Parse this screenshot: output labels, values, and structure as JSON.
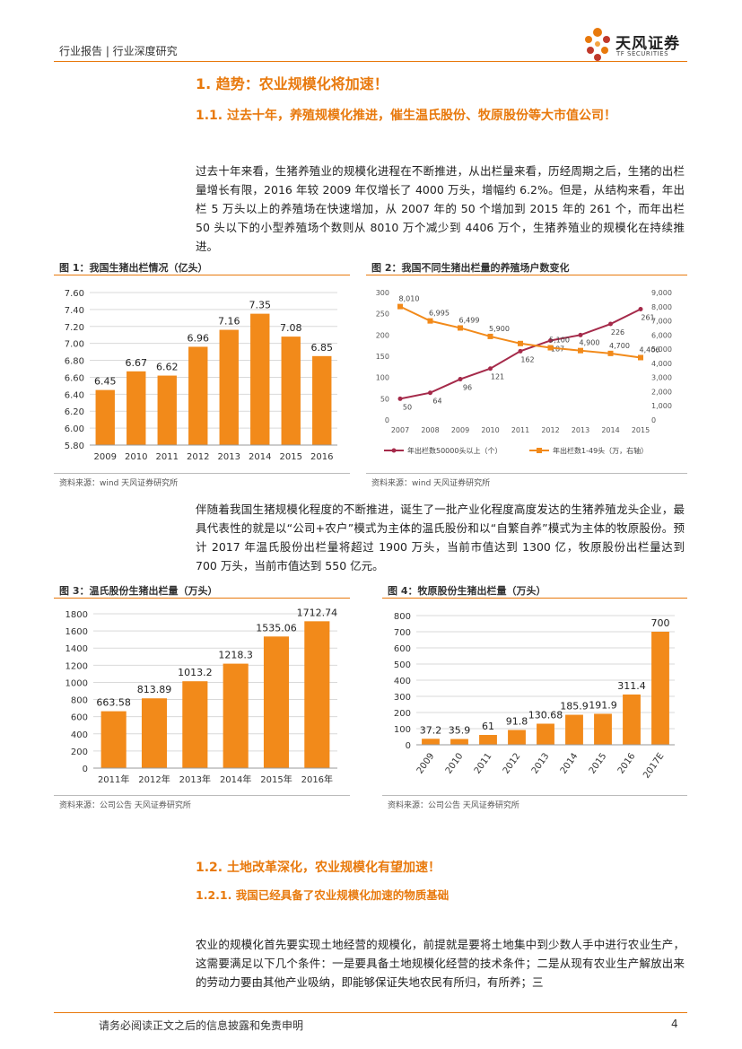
{
  "header": {
    "left": "行业报告 | 行业深度研究"
  },
  "logo": {
    "cn": "天风证券",
    "en": "TF SECURITIES"
  },
  "section1": {
    "title": "1. 趋势：农业规模化将加速！",
    "sub_title": "1.1. 过去十年，养殖规模化推进，催生温氏股份、牧原股份等大市值公司！",
    "para1": "过去十年来看，生猪养殖业的规模化进程在不断推进，从出栏量来看，历经周期之后，生猪的出栏量增长有限，2016 年较 2009 年仅增长了 4000 万头，增幅约 6.2%。但是，从结构来看，年出栏 5 万头以上的养殖场在快速增加，从 2007 年的 50 个增加到 2015 年的 261 个，而年出栏 50 头以下的小型养殖场个数则从 8010 万个减少到 4406 万个，生猪养殖业的规模化在持续推进。",
    "para2": "伴随着我国生猪规模化程度的不断推进，诞生了一批产业化程度高度发达的生猪养殖龙头企业，最具代表性的就是以“公司+农户”模式为主体的温氏股份和以“自繁自养”模式为主体的牧原股份。预计 2017 年温氏股份出栏量将超过 1900 万头，当前市值达到 1300 亿，牧原股份出栏量达到 700 万头，当前市值达到 550 亿元。"
  },
  "fig1": {
    "title": "图 1：我国生猪出栏情况（亿头）",
    "source": "资料来源：wind   天风证券研究所"
  },
  "fig2": {
    "title": "图 2：我国不同生猪出栏量的养殖场户数变化",
    "source": "资料来源：wind   天风证券研究所"
  },
  "fig3": {
    "title": "图 3：温氏股份生猪出栏量（万头）",
    "source": "资料来源：公司公告   天风证券研究所"
  },
  "fig4": {
    "title": "图 4：牧原股份生猪出栏量（万头）",
    "source": "资料来源：公司公告   天风证券研究所"
  },
  "section2": {
    "title": "1.2. 土地改革深化，农业规模化有望加速！",
    "sub_title": "1.2.1. 我国已经具备了农业规模化加速的物质基础",
    "para1": "农业的规模化首先要实现土地经营的规模化，前提就是要将土地集中到少数人手中进行农业生产，这需要满足以下几个条件：一是要具备土地规模化经营的技术条件；二是从现有农业生产解放出来的劳动力要由其他产业吸纳，即能够保证失地农民有所归，有所养；三"
  },
  "footer": {
    "disclaimer": "请务必阅读正文之后的信息披露和免责申明",
    "page": "4"
  },
  "colors": {
    "accent": "#E8790C",
    "bar": "#F28A1A",
    "line_red": "#A52A4A"
  },
  "chart_data": [
    {
      "type": "bar",
      "categories": [
        "2009",
        "2010",
        "2011",
        "2012",
        "2013",
        "2014",
        "2015",
        "2016"
      ],
      "values": [
        6.45,
        6.67,
        6.62,
        6.96,
        7.16,
        7.35,
        7.08,
        6.85
      ],
      "value_labels": [
        "6.45",
        "6.67",
        "6.62",
        "6.96",
        "7.16",
        "7.35",
        "7.08",
        "6.85"
      ],
      "y_ticks": [
        "5.80",
        "6.00",
        "6.20",
        "6.40",
        "6.60",
        "6.80",
        "7.00",
        "7.20",
        "7.40",
        "7.60"
      ],
      "ylim": [
        5.8,
        7.6
      ],
      "grid": true
    },
    {
      "type": "line",
      "categories": [
        "2007",
        "2008",
        "2009",
        "2010",
        "2011",
        "2012",
        "2013",
        "2014",
        "2015"
      ],
      "series": [
        {
          "name": "年出栏数50000头以上（个）",
          "axis": "left",
          "values": [
            50,
            64,
            96,
            121,
            162,
            187,
            200,
            226,
            261
          ],
          "labels": [
            "50",
            "64",
            "96",
            "121",
            "162",
            "187",
            "",
            "226",
            "261"
          ]
        },
        {
          "name": "年出栏数1-49头（万，右轴）",
          "axis": "right",
          "values": [
            8010,
            6995,
            6499,
            5900,
            5400,
            5100,
            4900,
            4700,
            4406
          ],
          "labels": [
            "8,010",
            "6,995",
            "6,499",
            "5,900",
            "",
            "5,100",
            "4,900",
            "4,700",
            "4,406"
          ]
        }
      ],
      "y_left_ticks": [
        "0",
        "50",
        "100",
        "150",
        "200",
        "250",
        "300"
      ],
      "y_right_ticks": [
        "0",
        "1,000",
        "2,000",
        "3,000",
        "4,000",
        "5,000",
        "6,000",
        "7,000",
        "8,000",
        "9,000"
      ],
      "ylim_left": [
        0,
        300
      ],
      "ylim_right": [
        0,
        9000
      ],
      "legend": "bottom"
    },
    {
      "type": "bar",
      "categories": [
        "2011年",
        "2012年",
        "2013年",
        "2014年",
        "2015年",
        "2016年"
      ],
      "values": [
        663.58,
        813.89,
        1013.2,
        1218.3,
        1535.06,
        1712.74
      ],
      "value_labels": [
        "663.58",
        "813.89",
        "1013.2",
        "1218.3",
        "1535.06",
        "1712.74"
      ],
      "y_ticks": [
        "0",
        "200",
        "400",
        "600",
        "800",
        "1000",
        "1200",
        "1400",
        "1600",
        "1800"
      ],
      "ylim": [
        0,
        1800
      ],
      "grid": true
    },
    {
      "type": "bar",
      "categories": [
        "2009",
        "2010",
        "2011",
        "2012",
        "2013",
        "2014",
        "2015",
        "2016",
        "2017E"
      ],
      "values": [
        37.2,
        35.9,
        61,
        91.8,
        130.68,
        185.9,
        191.9,
        311.4,
        700
      ],
      "value_labels": [
        "37.2",
        "35.9",
        "61",
        "91.8",
        "130.68",
        "185.9",
        "191.9",
        "311.4",
        "700"
      ],
      "y_ticks": [
        "0",
        "100",
        "200",
        "300",
        "400",
        "500",
        "600",
        "700",
        "800"
      ],
      "ylim": [
        0,
        800
      ],
      "grid": true
    }
  ]
}
